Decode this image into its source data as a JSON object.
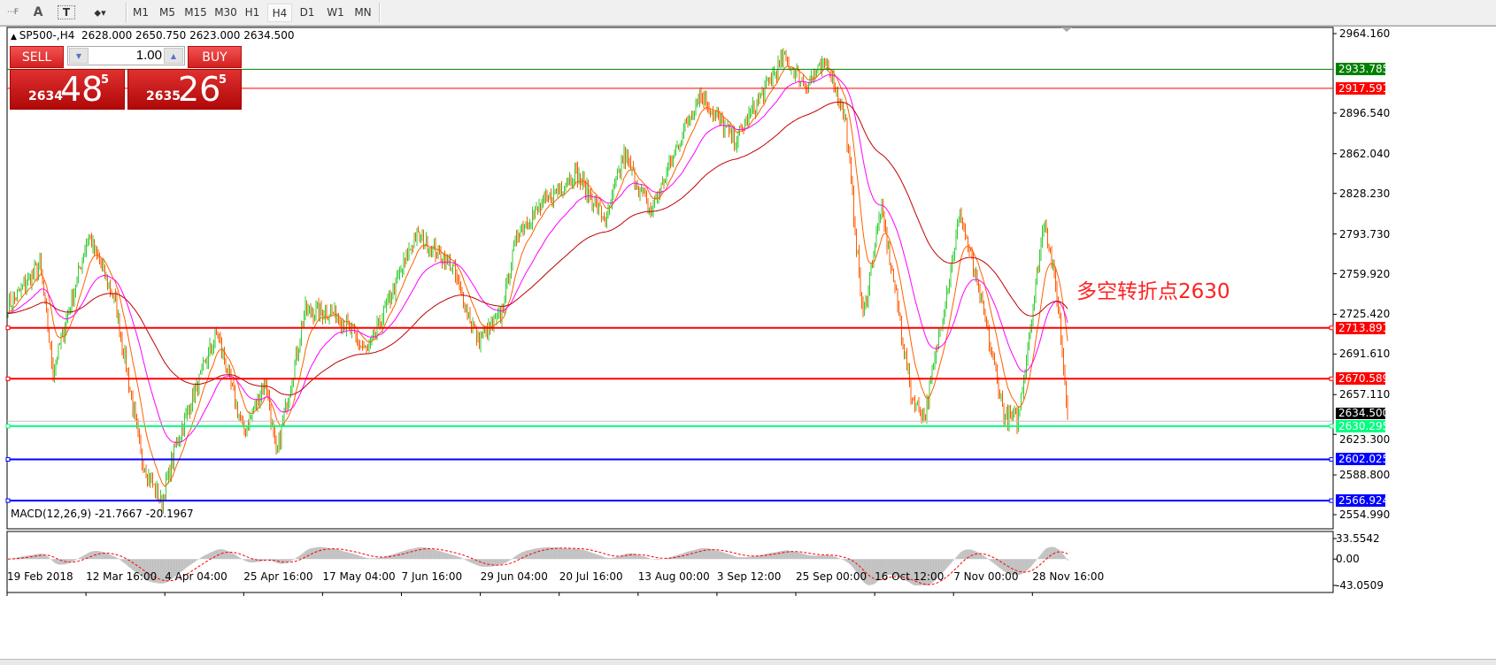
{
  "toolbar": {
    "font_label": "A",
    "timeframes": [
      "M1",
      "M5",
      "M15",
      "M30",
      "H1",
      "H4",
      "D1",
      "W1",
      "MN"
    ],
    "active": "H4"
  },
  "chart": {
    "header": "SP500-,H4  2628.000 2650.750 2623.000 2634.500",
    "symbol": "SP500-",
    "timeframe": "H4",
    "open": 2628.0,
    "high": 2650.75,
    "low": 2623.0,
    "close": 2634.5,
    "trade": {
      "sell_label": "SELL",
      "buy_label": "BUY",
      "lot": "1.00",
      "sell_big": "2634",
      "sell_mid": "48",
      "sell_sup": "5",
      "buy_big": "2635",
      "buy_mid": "26",
      "buy_sup": "5"
    },
    "annotation": "多空转折点2630",
    "price_axis": {
      "max": 2964.16,
      "min": 2554.99,
      "ticks": [
        "2964.160",
        "2896.540",
        "2862.040",
        "2828.230",
        "2793.730",
        "2759.920",
        "2725.420",
        "2691.610",
        "2657.110",
        "2623.300",
        "2588.800",
        "2554.990"
      ]
    },
    "levels": [
      {
        "label": "2933.785",
        "value": 2933.785,
        "color": "#008000",
        "width": 1
      },
      {
        "label": "2917.591",
        "value": 2917.591,
        "color": "#ff0000",
        "width": 1
      },
      {
        "label": "2713.891",
        "value": 2713.891,
        "color": "#ff0000",
        "width": 2
      },
      {
        "label": "2670.589",
        "value": 2670.589,
        "color": "#ff0000",
        "width": 2
      },
      {
        "label": "2630.295",
        "value": 2630.295,
        "color": "#00ff7f",
        "width": 2
      },
      {
        "label": "2602.025",
        "value": 2602.025,
        "color": "#0000ff",
        "width": 2
      },
      {
        "label": "2566.924",
        "value": 2566.924,
        "color": "#0000ff",
        "width": 2
      }
    ],
    "current_price": {
      "label": "2634.500",
      "value": 2634.5
    },
    "price_waypoints": [
      2733,
      2767,
      2677,
      2793,
      2737,
      2602,
      2564,
      2617,
      2711,
      2624,
      2669,
      2605,
      2729,
      2726,
      2692,
      2793,
      2767,
      2703,
      2722,
      2797,
      2846,
      2805,
      2861,
      2812,
      2914,
      2872,
      2944,
      2921,
      2940,
      2891,
      2722,
      2816,
      2752,
      2654,
      2639,
      2812,
      2729,
      2639,
      2635,
      2808,
      2737,
      2634
    ],
    "colors": {
      "bull": "#32cd32",
      "bear": "#ff5a00",
      "ma_fast": "#ff6000",
      "ma_mid": "#ff00ff",
      "ma_slow": "#c00000",
      "macd_hist": "#c0c0c0",
      "macd_signal": "#ff0000"
    }
  },
  "macd": {
    "label": "MACD(12,26,9) -21.7667 -20.1967",
    "ticks": [
      "33.5542",
      "0.00",
      "-43.0509"
    ],
    "max": 33.5542,
    "min": -43.0509
  },
  "time_axis": [
    "19 Feb 2018",
    "12 Mar 16:00",
    "4 Apr 04:00",
    "25 Apr 16:00",
    "17 May 04:00",
    "7 Jun 16:00",
    "29 Jun 04:00",
    "20 Jul 16:00",
    "13 Aug 00:00",
    "3 Sep 12:00",
    "25 Sep 00:00",
    "16 Oct 12:00",
    "7 Nov 00:00",
    "28 Nov 16:00"
  ]
}
